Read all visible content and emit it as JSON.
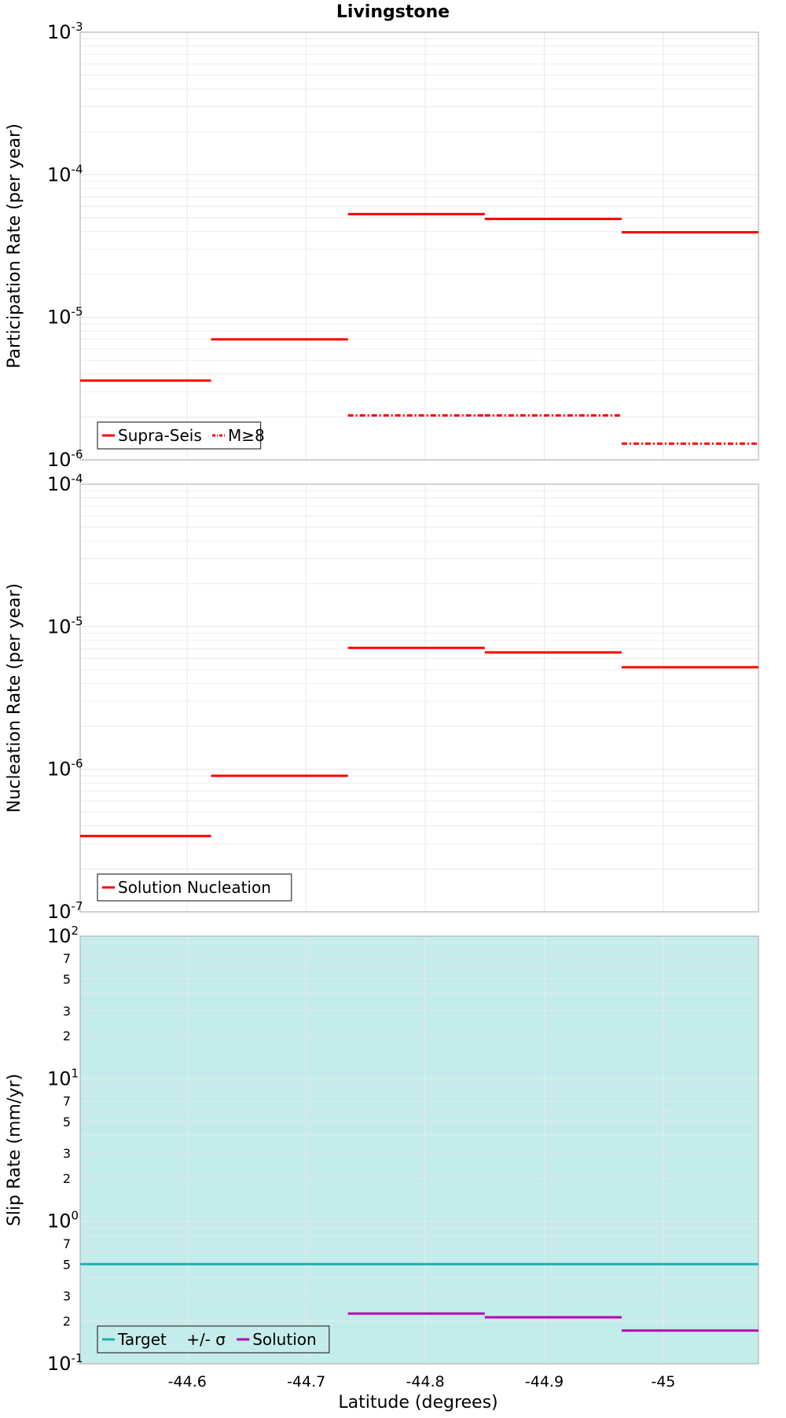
{
  "title": "Livingstone",
  "xlabel": "Latitude (degrees)",
  "x_ticks": [
    "-44.6",
    "-44.7",
    "-44.8",
    "-44.9",
    "-45"
  ],
  "colors": {
    "solution": "#ff0000",
    "target": "#19b2b2",
    "sigma_fill": "#c4ecea",
    "slip_solution": "#b400b4",
    "grid": "#e8e8e8",
    "frame": "#b4b4b4"
  },
  "chart_data": [
    {
      "type": "line",
      "panel": "participation",
      "ylabel": "Participation Rate (per year)",
      "yscale": "log",
      "ylim": [
        1e-06,
        0.001
      ],
      "xlim": [
        -44.51,
        -45.08
      ],
      "y_ticks": [
        {
          "base": "10",
          "exp": "-6"
        },
        {
          "base": "10",
          "exp": "-5"
        },
        {
          "base": "10",
          "exp": "-4"
        },
        {
          "base": "10",
          "exp": "-3"
        }
      ],
      "legend": {
        "position": "bottom-left",
        "entries": [
          {
            "label": "Supra-Seis",
            "style": "solid",
            "color": "#ff0000"
          },
          {
            "label": "M≥8",
            "style": "dashdot",
            "color": "#ff0000"
          }
        ]
      },
      "series": [
        {
          "name": "Supra-Seis",
          "style": "solid",
          "segments": [
            {
              "x": [
                -44.51,
                -44.62
              ],
              "y": 3.6e-06
            },
            {
              "x": [
                -44.62,
                -44.735
              ],
              "y": 7e-06
            },
            {
              "x": [
                -44.735,
                -44.85
              ],
              "y": 5.3e-05
            },
            {
              "x": [
                -44.85,
                -44.965
              ],
              "y": 4.9e-05
            },
            {
              "x": [
                -44.965,
                -45.08
              ],
              "y": 3.95e-05
            }
          ]
        },
        {
          "name": "M≥8",
          "style": "dashdot",
          "segments": [
            {
              "x": [
                -44.735,
                -44.85
              ],
              "y": 2.05e-06
            },
            {
              "x": [
                -44.85,
                -44.965
              ],
              "y": 2.05e-06
            },
            {
              "x": [
                -44.965,
                -45.08
              ],
              "y": 1.3e-06
            }
          ]
        }
      ]
    },
    {
      "type": "line",
      "panel": "nucleation",
      "ylabel": "Nucleation Rate (per year)",
      "yscale": "log",
      "ylim": [
        1e-07,
        0.0001
      ],
      "xlim": [
        -44.51,
        -45.08
      ],
      "y_ticks": [
        {
          "base": "10",
          "exp": "-7"
        },
        {
          "base": "10",
          "exp": "-6"
        },
        {
          "base": "10",
          "exp": "-5"
        },
        {
          "base": "10",
          "exp": "-4"
        }
      ],
      "legend": {
        "position": "bottom-left",
        "entries": [
          {
            "label": "Solution Nucleation",
            "style": "solid",
            "color": "#ff0000"
          }
        ]
      },
      "series": [
        {
          "name": "Solution Nucleation",
          "style": "solid",
          "segments": [
            {
              "x": [
                -44.51,
                -44.62
              ],
              "y": 3.4e-07
            },
            {
              "x": [
                -44.62,
                -44.735
              ],
              "y": 9e-07
            },
            {
              "x": [
                -44.735,
                -44.85
              ],
              "y": 7.1e-06
            },
            {
              "x": [
                -44.85,
                -44.965
              ],
              "y": 6.6e-06
            },
            {
              "x": [
                -44.965,
                -45.08
              ],
              "y": 5.2e-06
            }
          ]
        }
      ]
    },
    {
      "type": "line",
      "panel": "slip",
      "ylabel": "Slip Rate (mm/yr)",
      "yscale": "log",
      "ylim": [
        0.1,
        100
      ],
      "xlim": [
        -44.51,
        -45.08
      ],
      "y_ticks": [
        {
          "base": "10",
          "exp": "-1"
        },
        {
          "base": "10",
          "exp": "0"
        },
        {
          "base": "10",
          "exp": "1"
        },
        {
          "base": "10",
          "exp": "2"
        }
      ],
      "y_minor_labels": [
        {
          "value": 0.2,
          "label": "2"
        },
        {
          "value": 0.3,
          "label": "3"
        },
        {
          "value": 0.5,
          "label": "5"
        },
        {
          "value": 0.7,
          "label": "7"
        },
        {
          "value": 2,
          "label": "2"
        },
        {
          "value": 3,
          "label": "3"
        },
        {
          "value": 5,
          "label": "5"
        },
        {
          "value": 7,
          "label": "7"
        },
        {
          "value": 20,
          "label": "2"
        },
        {
          "value": 30,
          "label": "3"
        },
        {
          "value": 50,
          "label": "5"
        },
        {
          "value": 70,
          "label": "7"
        }
      ],
      "legend": {
        "position": "bottom-left",
        "entries": [
          {
            "label": "Target",
            "style": "solid",
            "color": "#19b2b2"
          },
          {
            "label": "+/- σ",
            "style": "fill",
            "color": "#c4ecea"
          },
          {
            "label": "Solution",
            "style": "solid",
            "color": "#b400b4"
          }
        ]
      },
      "band": {
        "name": "+/- σ",
        "y": [
          0.1,
          100
        ]
      },
      "series": [
        {
          "name": "Target",
          "style": "solid",
          "segments": [
            {
              "x": [
                -44.51,
                -45.08
              ],
              "y": 0.5
            }
          ]
        },
        {
          "name": "Solution",
          "style": "solid",
          "segments": [
            {
              "x": [
                -44.735,
                -44.85
              ],
              "y": 0.225
            },
            {
              "x": [
                -44.85,
                -44.965
              ],
              "y": 0.212
            },
            {
              "x": [
                -44.965,
                -45.08
              ],
              "y": 0.171
            }
          ]
        }
      ]
    }
  ]
}
